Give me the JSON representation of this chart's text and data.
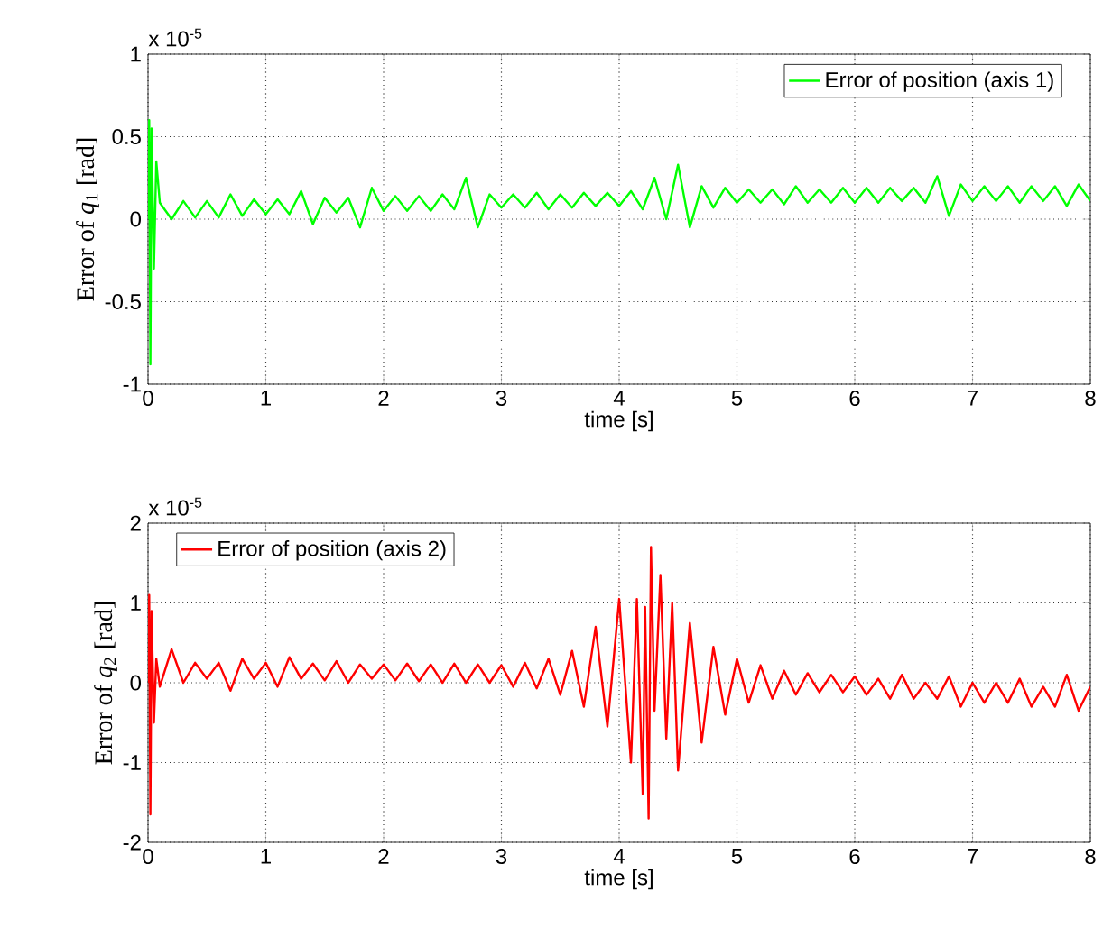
{
  "chart_data": [
    {
      "type": "line",
      "xlabel": "time [s]",
      "ylabel": "Error of *q*$_{1}$ [rad]",
      "annotations": [
        "x 10$^{-5}$"
      ],
      "xlim": [
        0,
        8
      ],
      "ylim": [
        -1,
        1
      ],
      "xticks": [
        0,
        1,
        2,
        3,
        4,
        5,
        6,
        7,
        8
      ],
      "yticks": [
        -1,
        -0.5,
        0,
        0.5,
        1
      ],
      "grid": true,
      "legend": "top right",
      "marker": "none",
      "line_style": "solid",
      "series": [
        {
          "name": "Error of position (axis 1)",
          "color": "#00ff00",
          "x": [
            0,
            0.01,
            0.02,
            0.03,
            0.05,
            0.07,
            0.1,
            0.2,
            0.3,
            0.4,
            0.5,
            0.6,
            0.7,
            0.8,
            0.9,
            1.0,
            1.1,
            1.2,
            1.3,
            1.4,
            1.5,
            1.6,
            1.7,
            1.8,
            1.9,
            2.0,
            2.1,
            2.2,
            2.3,
            2.4,
            2.5,
            2.6,
            2.7,
            2.8,
            2.9,
            3.0,
            3.1,
            3.2,
            3.3,
            3.4,
            3.5,
            3.6,
            3.7,
            3.8,
            3.9,
            4.0,
            4.1,
            4.2,
            4.3,
            4.4,
            4.5,
            4.6,
            4.7,
            4.8,
            4.9,
            5.0,
            5.1,
            5.2,
            5.3,
            5.4,
            5.5,
            5.6,
            5.7,
            5.8,
            5.9,
            6.0,
            6.1,
            6.2,
            6.3,
            6.4,
            6.5,
            6.6,
            6.7,
            6.8,
            6.9,
            7.0,
            7.1,
            7.2,
            7.3,
            7.4,
            7.5,
            7.6,
            7.7,
            7.8,
            7.9,
            8.0
          ],
          "values": [
            0,
            0.6,
            -0.88,
            0.55,
            -0.3,
            0.35,
            0.1,
            0.0,
            0.11,
            0.01,
            0.11,
            0.01,
            0.15,
            0.02,
            0.12,
            0.03,
            0.12,
            0.03,
            0.17,
            -0.03,
            0.13,
            0.04,
            0.13,
            -0.05,
            0.19,
            0.05,
            0.14,
            0.05,
            0.14,
            0.05,
            0.15,
            0.06,
            0.25,
            -0.05,
            0.15,
            0.07,
            0.15,
            0.07,
            0.16,
            0.06,
            0.15,
            0.07,
            0.16,
            0.08,
            0.16,
            0.08,
            0.17,
            0.06,
            0.25,
            0.0,
            0.33,
            -0.05,
            0.2,
            0.07,
            0.19,
            0.1,
            0.18,
            0.1,
            0.18,
            0.09,
            0.2,
            0.1,
            0.18,
            0.1,
            0.19,
            0.1,
            0.19,
            0.1,
            0.19,
            0.11,
            0.19,
            0.1,
            0.26,
            0.02,
            0.21,
            0.11,
            0.2,
            0.11,
            0.2,
            0.1,
            0.2,
            0.11,
            0.2,
            0.08,
            0.21,
            0.11
          ]
        }
      ]
    },
    {
      "type": "line",
      "xlabel": "time [s]",
      "ylabel": "Error of *q*$_{2}$ [rad]",
      "annotations": [
        "x 10$^{-5}$"
      ],
      "xlim": [
        0,
        8
      ],
      "ylim": [
        -2,
        2
      ],
      "xticks": [
        0,
        1,
        2,
        3,
        4,
        5,
        6,
        7,
        8
      ],
      "yticks": [
        -2,
        -1,
        0,
        1,
        2
      ],
      "grid": true,
      "legend": "top left",
      "marker": "none",
      "line_style": "solid",
      "series": [
        {
          "name": "Error of position (axis 2)",
          "color": "#ff0000",
          "x": [
            0,
            0.01,
            0.02,
            0.03,
            0.05,
            0.07,
            0.1,
            0.2,
            0.3,
            0.4,
            0.5,
            0.6,
            0.7,
            0.8,
            0.9,
            1.0,
            1.1,
            1.2,
            1.3,
            1.4,
            1.5,
            1.6,
            1.7,
            1.8,
            1.9,
            2.0,
            2.1,
            2.2,
            2.3,
            2.4,
            2.5,
            2.6,
            2.7,
            2.8,
            2.9,
            3.0,
            3.1,
            3.2,
            3.3,
            3.4,
            3.5,
            3.6,
            3.7,
            3.8,
            3.9,
            4.0,
            4.1,
            4.15,
            4.2,
            4.22,
            4.25,
            4.27,
            4.3,
            4.35,
            4.4,
            4.45,
            4.5,
            4.6,
            4.7,
            4.8,
            4.9,
            5.0,
            5.1,
            5.2,
            5.3,
            5.4,
            5.5,
            5.6,
            5.7,
            5.8,
            5.9,
            6.0,
            6.1,
            6.2,
            6.3,
            6.4,
            6.5,
            6.6,
            6.7,
            6.8,
            6.9,
            7.0,
            7.1,
            7.2,
            7.3,
            7.4,
            7.5,
            7.6,
            7.7,
            7.8,
            7.9,
            8.0
          ],
          "values": [
            0,
            1.1,
            -1.65,
            0.9,
            -0.5,
            0.3,
            -0.05,
            0.42,
            0.0,
            0.25,
            0.05,
            0.25,
            -0.1,
            0.3,
            0.05,
            0.25,
            -0.05,
            0.32,
            0.05,
            0.24,
            0.03,
            0.27,
            0.0,
            0.23,
            0.05,
            0.23,
            0.03,
            0.24,
            0.02,
            0.23,
            0.0,
            0.24,
            0.0,
            0.23,
            0.0,
            0.22,
            -0.05,
            0.25,
            -0.07,
            0.3,
            -0.15,
            0.4,
            -0.3,
            0.7,
            -0.55,
            1.05,
            -1.0,
            1.05,
            -1.4,
            0.95,
            -1.7,
            1.7,
            -0.35,
            1.35,
            -0.7,
            1.0,
            -1.1,
            0.75,
            -0.75,
            0.45,
            -0.4,
            0.3,
            -0.25,
            0.22,
            -0.2,
            0.15,
            -0.15,
            0.12,
            -0.12,
            0.1,
            -0.12,
            0.08,
            -0.15,
            0.05,
            -0.2,
            0.1,
            -0.2,
            0.0,
            -0.2,
            0.08,
            -0.3,
            0.0,
            -0.25,
            0.0,
            -0.25,
            0.05,
            -0.3,
            -0.05,
            -0.3,
            0.1,
            -0.35,
            -0.05
          ]
        }
      ]
    }
  ]
}
